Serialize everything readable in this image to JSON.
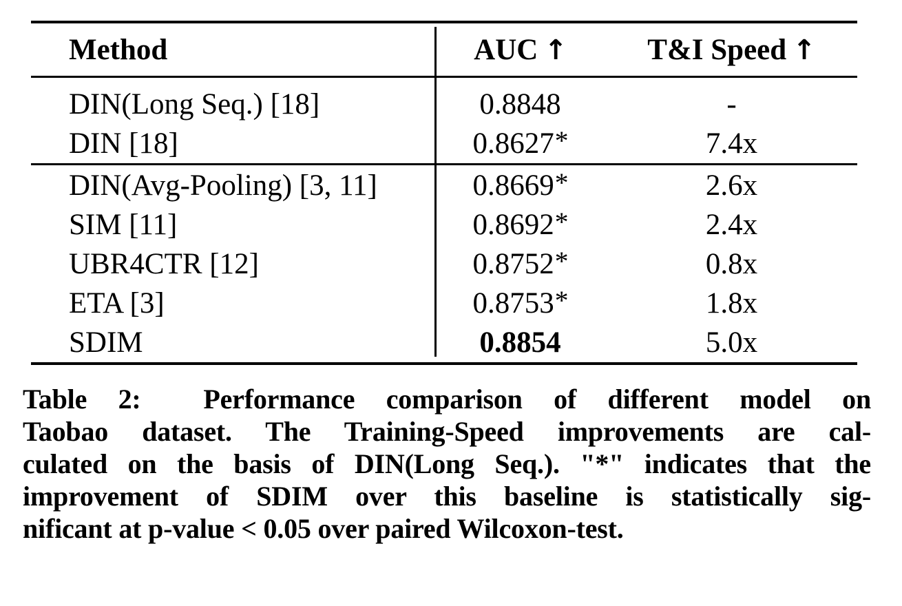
{
  "table": {
    "headers": {
      "method": "Method",
      "auc": "AUC",
      "auc_arrow": "↑",
      "speed": "T&I Speed",
      "speed_arrow": "↑"
    },
    "rows": [
      {
        "method": "DIN(Long Seq.) [18]",
        "auc": "0.8848",
        "star": "",
        "speed": "-"
      },
      {
        "method": "DIN [18]",
        "auc": "0.8627",
        "star": "*",
        "speed": "7.4x"
      },
      {
        "method": "DIN(Avg-Pooling) [3, 11]",
        "auc": "0.8669",
        "star": "*",
        "speed": "2.6x"
      },
      {
        "method": "SIM [11]",
        "auc": "0.8692",
        "star": "*",
        "speed": "2.4x"
      },
      {
        "method": "UBR4CTR [12]",
        "auc": "0.8752",
        "star": "*",
        "speed": "0.8x"
      },
      {
        "method": "ETA [3]",
        "auc": "0.8753",
        "star": "*",
        "speed": "1.8x"
      },
      {
        "method": "SDIM",
        "auc": "0.8854",
        "star": "",
        "speed": "5.0x"
      }
    ]
  },
  "caption": {
    "lines": [
      "Table 2:  Performance comparison of different model on",
      "Taobao dataset. The Training-Speed improvements are cal-",
      "culated on the basis of DIN(Long Seq.). \"*\" indicates that the",
      "improvement of SDIM over this baseline is statistically sig-",
      "nificant at p-value < 0.05 over paired Wilcoxon-test."
    ]
  }
}
